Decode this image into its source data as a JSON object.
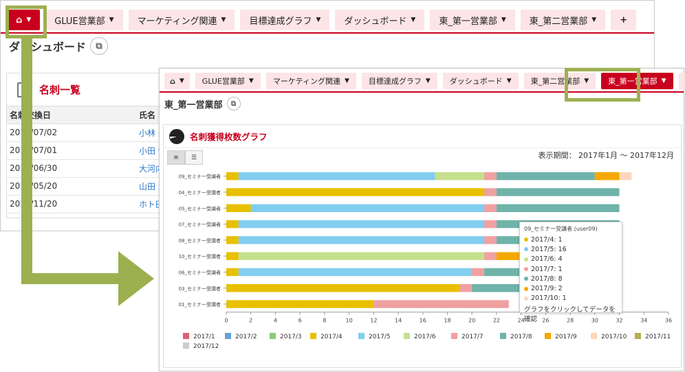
{
  "window_back": {
    "tabs": [
      {
        "label": "",
        "home": true,
        "active": true
      },
      {
        "label": "GLUE営業部"
      },
      {
        "label": "マーケティング関連"
      },
      {
        "label": "目標達成グラフ"
      },
      {
        "label": "ダッシュボード"
      },
      {
        "label": "東_第一営業部"
      },
      {
        "label": "東_第二営業部"
      }
    ],
    "add_label": "+",
    "page_title": "ダッシュボード",
    "meishi": {
      "title": "名刺一覧",
      "columns": [
        "名刺交換日",
        "氏名"
      ],
      "rows": [
        [
          "2017/07/02",
          "小林 美"
        ],
        [
          "2017/07/01",
          "小田 恒"
        ],
        [
          "2017/06/30",
          "大河内"
        ],
        [
          "2017/05/20",
          "山田 大"
        ],
        [
          "2016/11/20",
          "ホト田"
        ]
      ]
    }
  },
  "window_front": {
    "tabs": [
      {
        "label": "",
        "home": true
      },
      {
        "label": "GLUE営業部"
      },
      {
        "label": "マーケティング関連"
      },
      {
        "label": "目標達成グラフ"
      },
      {
        "label": "ダッシュボード"
      },
      {
        "label": "東_第二営業部"
      },
      {
        "label": "東_第一営業部",
        "active": true
      }
    ],
    "add_label": "+",
    "page_title": "東_第一営業部",
    "graph": {
      "title": "名刺獲得枚数グラフ",
      "period": "表示期間： 2017年1月 〜 2017年12月"
    },
    "tooltip": {
      "title": "09_セミナー受講者.(user09)",
      "rows": [
        {
          "label": "2017/4: 1",
          "color": "#e8c000"
        },
        {
          "label": "2017/5: 16",
          "color": "#82cdf0"
        },
        {
          "label": "2017/6: 4",
          "color": "#c5e08c"
        },
        {
          "label": "2017/7: 1",
          "color": "#f0a0a0"
        },
        {
          "label": "2017/8: 8",
          "color": "#6fb3aa"
        },
        {
          "label": "2017/9: 2",
          "color": "#f5a800"
        },
        {
          "label": "2017/10: 1",
          "color": "#fcd7bd"
        }
      ],
      "hint": "グラフをクリックしてデータを確認"
    }
  },
  "chart_data": {
    "type": "bar",
    "orientation": "horizontal",
    "stacked": true,
    "title": "名刺獲得枚数グラフ",
    "categories": [
      "09_セミナー受講者",
      "04_セミナー受講者",
      "05_セミナー受講者",
      "07_セミナー受講者",
      "08_セミナー受講者",
      "10_セミナー受講者",
      "06_セミナー受講者",
      "03_セミナー受講者",
      "01_セミナー受講者"
    ],
    "xlim": [
      0,
      36
    ],
    "xticks": [
      "0",
      "2",
      "4",
      "6",
      "8",
      "10",
      "12",
      "14",
      "16",
      "18",
      "20",
      "22",
      "24",
      "26",
      "28",
      "30",
      "32",
      "34",
      "36"
    ],
    "series": [
      {
        "name": "2017/1",
        "color": "#e0636e",
        "values": [
          0,
          0,
          0,
          0,
          0,
          0,
          0,
          0,
          0
        ]
      },
      {
        "name": "2017/2",
        "color": "#6f9fd8",
        "values": [
          0,
          0,
          0,
          0,
          0,
          0,
          0,
          0,
          0
        ]
      },
      {
        "name": "2017/3",
        "color": "#8cc97a",
        "values": [
          0,
          0,
          0,
          0,
          0,
          0,
          0,
          0,
          0
        ]
      },
      {
        "name": "2017/4",
        "color": "#e8c000",
        "values": [
          1,
          21,
          2,
          1,
          1,
          1,
          1,
          19,
          12
        ]
      },
      {
        "name": "2017/5",
        "color": "#82cdf0",
        "values": [
          16,
          0,
          19,
          20,
          20,
          0,
          19,
          0,
          0
        ]
      },
      {
        "name": "2017/6",
        "color": "#c5e08c",
        "values": [
          4,
          0,
          0,
          0,
          0,
          20,
          0,
          0,
          0
        ]
      },
      {
        "name": "2017/7",
        "color": "#f0a0a0",
        "values": [
          1,
          1,
          1,
          1,
          1,
          1,
          1,
          1,
          11
        ]
      },
      {
        "name": "2017/8",
        "color": "#6fb3aa",
        "values": [
          8,
          10,
          10,
          10,
          10,
          0,
          10,
          10,
          0
        ]
      },
      {
        "name": "2017/9",
        "color": "#f5a800",
        "values": [
          2,
          0,
          0,
          0,
          0,
          10,
          0,
          0,
          0
        ]
      },
      {
        "name": "2017/10",
        "color": "#fcd7bd",
        "values": [
          1,
          0,
          0,
          0,
          0,
          0,
          0,
          0,
          0
        ]
      },
      {
        "name": "2017/11",
        "color": "#b3b04f",
        "values": [
          0,
          0,
          0,
          0,
          0,
          0,
          0,
          0,
          0
        ]
      },
      {
        "name": "2017/12",
        "color": "#cccccc",
        "values": [
          0,
          0,
          0,
          0,
          0,
          0,
          0,
          0,
          0
        ]
      }
    ]
  }
}
